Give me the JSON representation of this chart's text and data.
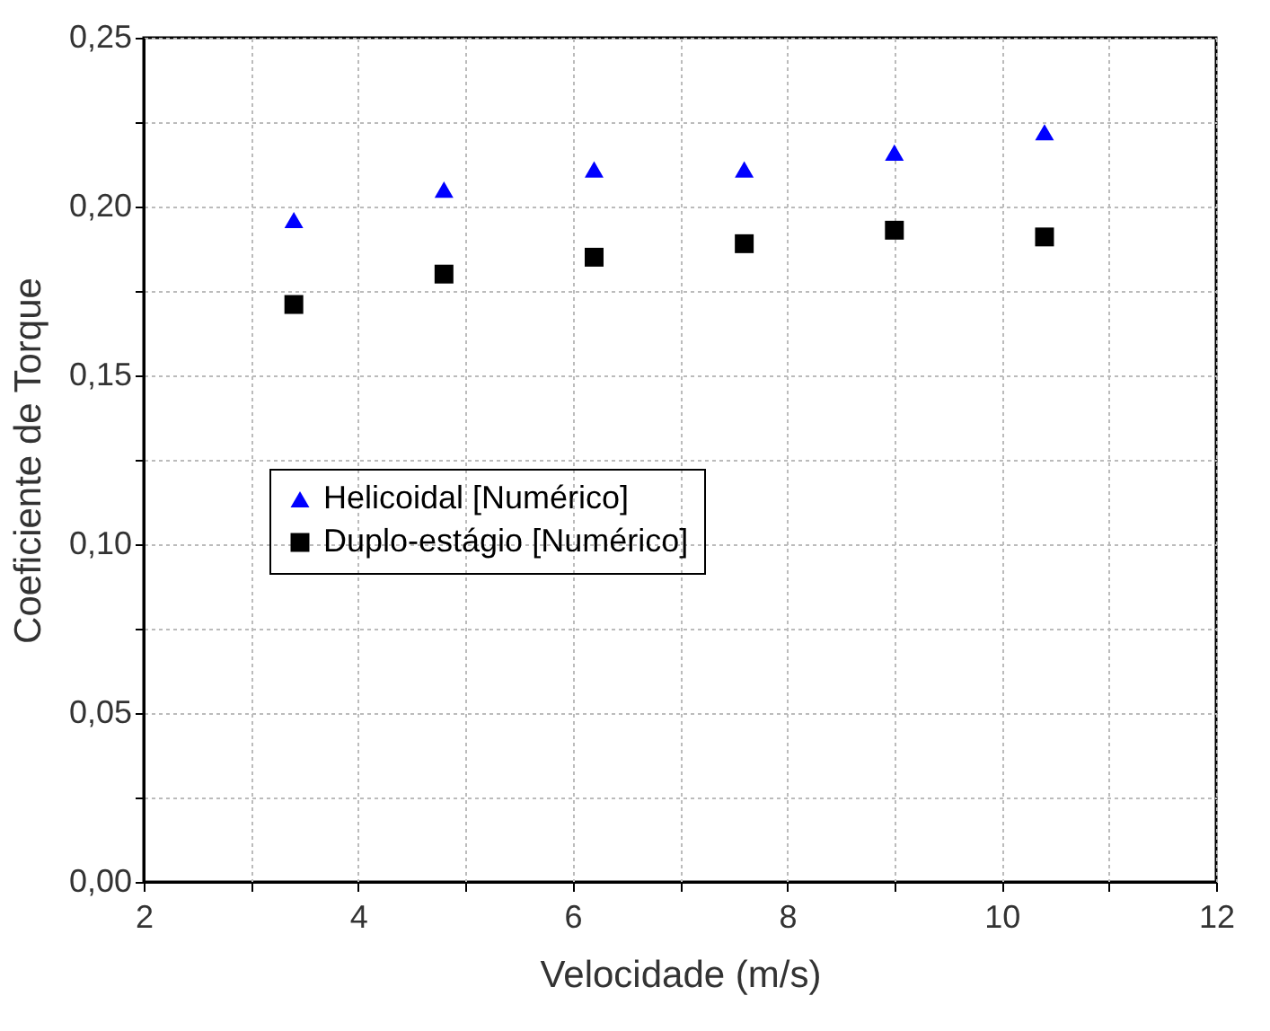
{
  "chart_data": {
    "type": "scatter",
    "xlabel": "Velocidade (m/s)",
    "ylabel": "Coeficiente de Torque",
    "x": [
      3.4,
      4.8,
      6.2,
      7.6,
      9.0,
      10.4
    ],
    "series": [
      {
        "name": "Helicoidal [Numérico]",
        "color": "#0000ff",
        "marker": "triangle",
        "values": [
          0.196,
          0.205,
          0.211,
          0.211,
          0.216,
          0.222
        ]
      },
      {
        "name": "Duplo-estágio [Numérico]",
        "color": "#000000",
        "marker": "square",
        "values": [
          0.171,
          0.18,
          0.185,
          0.189,
          0.193,
          0.191
        ]
      }
    ],
    "xlim": [
      2,
      12
    ],
    "xticks": [
      2,
      {
        "value": 3,
        "label": null
      },
      4,
      {
        "value": 5,
        "label": null
      },
      6,
      {
        "value": 7,
        "label": null
      },
      8,
      {
        "value": 9,
        "label": null
      },
      10,
      {
        "value": 11,
        "label": null
      },
      12
    ],
    "ylim": [
      0,
      0.25
    ],
    "yticks": [
      {
        "value": 0,
        "label": "0,00"
      },
      {
        "value": 0.025,
        "label": null
      },
      {
        "value": 0.05,
        "label": "0,05"
      },
      {
        "value": 0.075,
        "label": null
      },
      {
        "value": 0.1,
        "label": "0,10"
      },
      {
        "value": 0.125,
        "label": null
      },
      {
        "value": 0.15,
        "label": "0,15"
      },
      {
        "value": 0.175,
        "label": null
      },
      {
        "value": 0.2,
        "label": "0,20"
      },
      {
        "value": 0.225,
        "label": null
      },
      {
        "value": 0.25,
        "label": "0,25"
      }
    ],
    "grid": true,
    "legend": "left"
  }
}
